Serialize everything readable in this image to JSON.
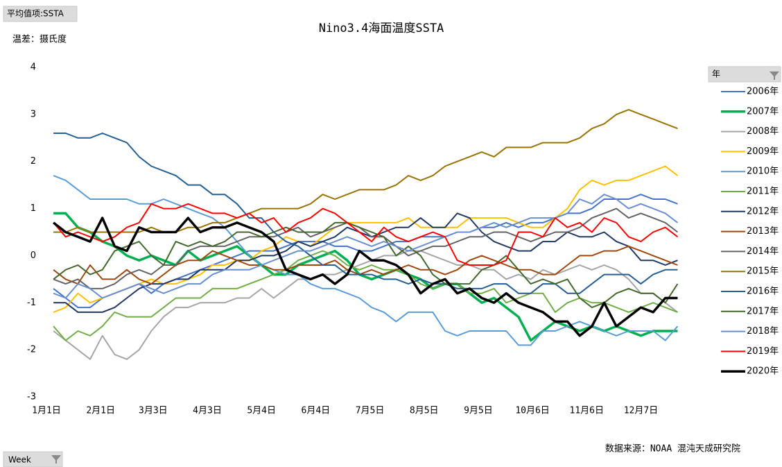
{
  "chart_data": {
    "type": "line",
    "title": "Nino3.4海面温度SSTA",
    "value_field": "平均值项:SSTA",
    "y_label": "温差：摄氏度",
    "legend_title": "年",
    "axis_field": "Week",
    "source": "数据来源：NOAA  混沌天成研究院",
    "legend": "right",
    "grid": false,
    "ylim": [
      -3,
      4
    ],
    "yticks": [
      -3,
      -2,
      -1,
      0,
      1,
      2,
      3,
      4
    ],
    "xlim": [
      0,
      366
    ],
    "xticks": [
      {
        "value": 0,
        "label": "1月1日"
      },
      {
        "value": 31,
        "label": "2月1日"
      },
      {
        "value": 61,
        "label": "3月3日"
      },
      {
        "value": 92,
        "label": "4月3日"
      },
      {
        "value": 123,
        "label": "5月4日"
      },
      {
        "value": 154,
        "label": "6月4日"
      },
      {
        "value": 185,
        "label": "7月5日"
      },
      {
        "value": 216,
        "label": "8月5日"
      },
      {
        "value": 247,
        "label": "9月5日"
      },
      {
        "value": 278,
        "label": "10月6日"
      },
      {
        "value": 309,
        "label": "11月6日"
      },
      {
        "value": 340,
        "label": "12月7日"
      }
    ],
    "x": [
      4,
      11,
      18,
      25,
      32,
      39,
      46,
      53,
      60,
      67,
      74,
      81,
      88,
      95,
      102,
      109,
      116,
      123,
      130,
      137,
      144,
      151,
      158,
      165,
      172,
      179,
      186,
      193,
      200,
      207,
      214,
      221,
      228,
      235,
      242,
      249,
      256,
      263,
      270,
      277,
      284,
      291,
      298,
      305,
      312,
      319,
      326,
      333,
      340,
      347,
      354,
      361
    ],
    "series": [
      {
        "name": "2006年",
        "color": "#4472c4",
        "width": 2,
        "values": [
          -0.7,
          -0.9,
          -1.1,
          -1.1,
          -0.9,
          -0.8,
          -0.7,
          -0.6,
          -0.8,
          -0.6,
          -0.5,
          -0.4,
          -0.3,
          -0.2,
          -0.1,
          0.0,
          0.1,
          0.1,
          0.1,
          0.2,
          0.3,
          0.3,
          0.3,
          0.2,
          0.2,
          0.1,
          0.1,
          0.2,
          0.3,
          0.3,
          0.4,
          0.4,
          0.4,
          0.5,
          0.5,
          0.6,
          0.6,
          0.7,
          0.6,
          0.7,
          0.7,
          0.8,
          0.9,
          0.9,
          1.0,
          1.2,
          1.2,
          1.2,
          1.3,
          1.2,
          1.2,
          1.1
        ]
      },
      {
        "name": "2007年",
        "color": "#00b050",
        "width": 3.5,
        "values": [
          0.9,
          0.9,
          0.6,
          0.5,
          0.3,
          0.2,
          0.0,
          -0.1,
          0.0,
          -0.1,
          -0.2,
          0.1,
          -0.1,
          0.0,
          0.1,
          0.2,
          0.0,
          -0.2,
          -0.4,
          -0.4,
          -0.2,
          -0.1,
          0.0,
          0.1,
          -0.1,
          -0.4,
          -0.5,
          -0.4,
          -0.3,
          -0.4,
          -0.5,
          -0.7,
          -0.6,
          -0.6,
          -0.8,
          -1.0,
          -0.9,
          -1.1,
          -1.3,
          -1.8,
          -1.6,
          -1.4,
          -1.5,
          -1.6,
          -1.5,
          -1.6,
          -1.5,
          -1.6,
          -1.7,
          -1.6,
          -1.6,
          -1.6
        ]
      },
      {
        "name": "2008年",
        "color": "#a5a5a5",
        "width": 2,
        "values": [
          -1.6,
          -1.8,
          -2.0,
          -2.2,
          -1.7,
          -2.1,
          -2.2,
          -2.0,
          -1.6,
          -1.3,
          -1.1,
          -1.1,
          -1.0,
          -1.0,
          -1.0,
          -0.9,
          -0.9,
          -0.7,
          -0.9,
          -0.7,
          -0.5,
          -0.5,
          -0.4,
          -0.4,
          -0.3,
          -0.2,
          -0.1,
          0.0,
          0.0,
          0.1,
          0.1,
          0.0,
          -0.1,
          -0.2,
          -0.2,
          -0.3,
          -0.3,
          -0.5,
          -0.4,
          -0.5,
          -0.3,
          -0.4,
          -0.3,
          -0.2,
          -0.3,
          -0.2,
          -0.3,
          -0.5,
          -0.8,
          -0.8,
          -1.0,
          -1.2
        ]
      },
      {
        "name": "2009年",
        "color": "#ffc000",
        "width": 2,
        "values": [
          -1.2,
          -1.1,
          -0.8,
          -1.0,
          -0.9,
          -0.8,
          -0.7,
          -0.6,
          -0.5,
          -0.6,
          -0.6,
          -0.5,
          -0.4,
          -0.2,
          -0.2,
          -0.1,
          -0.1,
          0.1,
          0.2,
          0.4,
          0.3,
          0.2,
          0.4,
          0.6,
          0.7,
          0.7,
          0.7,
          0.7,
          0.7,
          0.8,
          0.6,
          0.6,
          0.6,
          0.6,
          0.8,
          0.8,
          0.8,
          0.8,
          0.7,
          0.6,
          0.6,
          0.8,
          1.0,
          1.4,
          1.6,
          1.5,
          1.6,
          1.6,
          1.7,
          1.8,
          1.9,
          1.7
        ]
      },
      {
        "name": "2010年",
        "color": "#5b9bd5",
        "width": 2,
        "values": [
          1.7,
          1.6,
          1.4,
          1.2,
          1.2,
          1.2,
          1.2,
          1.1,
          1.1,
          1.2,
          1.1,
          1.0,
          0.9,
          0.8,
          0.6,
          0.3,
          0.0,
          -0.2,
          -0.3,
          -0.4,
          -0.4,
          -0.6,
          -0.7,
          -0.7,
          -0.8,
          -0.9,
          -1.1,
          -1.2,
          -1.4,
          -1.2,
          -1.2,
          -1.2,
          -1.6,
          -1.7,
          -1.6,
          -1.6,
          -1.6,
          -1.6,
          -1.9,
          -1.9,
          -1.6,
          -1.6,
          -1.5,
          -1.4,
          -1.5,
          -1.6,
          -1.7,
          -1.6,
          -1.6,
          -1.6,
          -1.8,
          -1.5
        ]
      },
      {
        "name": "2011年",
        "color": "#70ad47",
        "width": 2,
        "values": [
          -1.5,
          -1.8,
          -1.6,
          -1.7,
          -1.5,
          -1.2,
          -1.3,
          -1.3,
          -1.3,
          -1.1,
          -0.9,
          -0.9,
          -0.9,
          -0.7,
          -0.7,
          -0.7,
          -0.6,
          -0.5,
          -0.4,
          -0.3,
          -0.1,
          0.0,
          0.1,
          0.0,
          -0.2,
          -0.3,
          -0.2,
          -0.3,
          -0.3,
          -0.4,
          -0.6,
          -0.7,
          -0.6,
          -0.6,
          -0.8,
          -0.8,
          -0.7,
          -1.0,
          -0.9,
          -0.8,
          -0.8,
          -1.2,
          -1.0,
          -0.9,
          -1.0,
          -1.0,
          -1.1,
          -1.2,
          -1.1,
          -1.0,
          -1.1,
          -1.2
        ]
      },
      {
        "name": "2012年",
        "color": "#203864",
        "width": 2,
        "values": [
          -1.0,
          -1.0,
          -1.2,
          -1.2,
          -1.2,
          -1.1,
          -0.9,
          -0.7,
          -0.6,
          -0.6,
          -0.5,
          -0.5,
          -0.3,
          -0.3,
          -0.3,
          -0.1,
          -0.1,
          0.0,
          0.0,
          0.1,
          0.3,
          0.2,
          0.3,
          0.4,
          0.6,
          0.5,
          0.4,
          0.5,
          0.6,
          0.6,
          0.8,
          0.6,
          0.6,
          0.9,
          0.8,
          0.5,
          0.3,
          0.2,
          0.1,
          0.1,
          0.3,
          0.3,
          0.5,
          0.4,
          0.4,
          0.5,
          0.3,
          0.2,
          -0.1,
          -0.1,
          -0.2,
          -0.1
        ]
      },
      {
        "name": "2013年",
        "color": "#9e480e",
        "width": 2,
        "values": [
          -0.3,
          -0.5,
          -0.6,
          -0.2,
          -0.5,
          -0.5,
          -0.3,
          -0.5,
          -0.6,
          -0.4,
          -0.2,
          -0.1,
          -0.1,
          0.1,
          0.0,
          -0.1,
          -0.2,
          -0.2,
          -0.3,
          -0.3,
          -0.2,
          -0.2,
          -0.2,
          -0.1,
          -0.3,
          -0.4,
          -0.3,
          -0.4,
          -0.3,
          -0.2,
          -0.3,
          -0.3,
          -0.4,
          -0.3,
          -0.1,
          0.0,
          -0.1,
          -0.2,
          -0.3,
          -0.3,
          -0.4,
          -0.4,
          -0.2,
          0.0,
          0.0,
          0.1,
          0.1,
          0.2,
          0.1,
          0.0,
          -0.1,
          -0.2
        ]
      },
      {
        "name": "2014年",
        "color": "#636363",
        "width": 2,
        "values": [
          -0.5,
          -0.6,
          -0.5,
          -0.7,
          -0.7,
          -0.6,
          -0.4,
          -0.3,
          -0.4,
          -0.2,
          -0.2,
          0.1,
          0.2,
          0.2,
          0.2,
          0.3,
          0.4,
          0.4,
          0.4,
          0.5,
          0.6,
          0.4,
          0.5,
          0.6,
          0.7,
          0.6,
          0.4,
          0.4,
          0.2,
          0.0,
          0.1,
          0.2,
          0.2,
          0.3,
          0.4,
          0.4,
          0.5,
          0.5,
          0.4,
          0.3,
          0.4,
          0.5,
          0.5,
          0.6,
          0.8,
          0.9,
          1.0,
          0.8,
          0.9,
          0.8,
          0.7,
          0.5
        ]
      },
      {
        "name": "2015年",
        "color": "#997300",
        "width": 2,
        "values": [
          0.5,
          0.5,
          0.6,
          0.5,
          0.5,
          0.5,
          0.5,
          0.5,
          0.6,
          0.5,
          0.5,
          0.6,
          0.6,
          0.7,
          0.7,
          0.8,
          0.9,
          1.0,
          1.0,
          1.0,
          1.0,
          1.1,
          1.3,
          1.2,
          1.3,
          1.4,
          1.4,
          1.4,
          1.5,
          1.7,
          1.6,
          1.7,
          1.9,
          2.0,
          2.1,
          2.2,
          2.1,
          2.3,
          2.3,
          2.3,
          2.4,
          2.4,
          2.4,
          2.5,
          2.7,
          2.8,
          3.0,
          3.1,
          3.0,
          2.9,
          2.8,
          2.7
        ]
      },
      {
        "name": "2016年",
        "color": "#255e91",
        "width": 2,
        "values": [
          2.6,
          2.6,
          2.5,
          2.5,
          2.6,
          2.5,
          2.4,
          2.1,
          1.9,
          1.8,
          1.7,
          1.5,
          1.5,
          1.3,
          1.3,
          1.1,
          0.8,
          0.8,
          0.5,
          0.3,
          0.2,
          0.0,
          -0.2,
          -0.2,
          -0.4,
          -0.4,
          -0.4,
          -0.5,
          -0.5,
          -0.6,
          -0.5,
          -0.6,
          -0.6,
          -0.7,
          -0.7,
          -0.7,
          -0.6,
          -0.6,
          -0.8,
          -0.8,
          -0.6,
          -0.6,
          -0.8,
          -0.8,
          -0.6,
          -0.4,
          -0.4,
          -0.4,
          -0.6,
          -0.4,
          -0.3,
          -0.3
        ]
      },
      {
        "name": "2017年",
        "color": "#43682b",
        "width": 2,
        "values": [
          -0.5,
          -0.3,
          -0.2,
          -0.4,
          -0.3,
          0.1,
          0.2,
          0.3,
          0.0,
          -0.2,
          0.3,
          0.2,
          0.3,
          0.2,
          0.3,
          0.5,
          0.5,
          0.4,
          0.5,
          0.6,
          0.5,
          0.5,
          0.5,
          0.7,
          0.7,
          0.6,
          0.5,
          0.4,
          0.0,
          0.2,
          0.0,
          -0.4,
          -0.6,
          -0.6,
          -0.6,
          -0.3,
          -0.2,
          0.0,
          -0.3,
          -0.6,
          -0.5,
          -0.6,
          -0.5,
          -0.9,
          -1.1,
          -1.0,
          -0.8,
          -0.7,
          -0.8,
          -0.8,
          -1.0,
          -0.6
        ]
      },
      {
        "name": "2018年",
        "color": "#698ed0",
        "width": 2,
        "values": [
          -0.8,
          -0.9,
          -0.6,
          -0.7,
          -0.9,
          -0.8,
          -0.7,
          -0.6,
          -0.7,
          -0.8,
          -0.7,
          -0.6,
          -0.6,
          -0.4,
          -0.3,
          -0.3,
          -0.3,
          -0.2,
          -0.1,
          0.0,
          0.1,
          0.1,
          0.2,
          0.3,
          0.4,
          0.3,
          0.2,
          0.3,
          0.2,
          0.1,
          0.2,
          0.3,
          0.4,
          0.5,
          0.5,
          0.6,
          0.7,
          0.6,
          0.7,
          0.8,
          0.8,
          0.8,
          0.9,
          1.2,
          1.1,
          1.3,
          1.2,
          1.0,
          1.1,
          1.0,
          0.9,
          0.7
        ]
      },
      {
        "name": "2019年",
        "color": "#ff0000",
        "width": 2,
        "values": [
          0.7,
          0.4,
          0.5,
          0.4,
          0.3,
          0.4,
          0.6,
          0.7,
          1.1,
          1.0,
          1.0,
          1.1,
          1.0,
          0.9,
          0.9,
          0.8,
          0.9,
          0.7,
          0.8,
          0.5,
          0.7,
          0.8,
          1.0,
          0.9,
          0.7,
          0.5,
          0.3,
          0.6,
          0.4,
          0.3,
          0.4,
          0.5,
          0.4,
          -0.1,
          -0.2,
          -0.2,
          -0.2,
          -0.1,
          0.5,
          0.5,
          0.4,
          0.8,
          0.6,
          0.7,
          0.5,
          0.8,
          0.7,
          0.4,
          0.3,
          0.5,
          0.6,
          0.4
        ]
      },
      {
        "name": "2020年",
        "color": "#000000",
        "width": 3.5,
        "values": [
          0.7,
          0.5,
          0.4,
          0.3,
          0.8,
          0.2,
          0.1,
          0.6,
          0.5,
          0.5,
          0.5,
          0.8,
          0.5,
          0.6,
          0.6,
          0.7,
          0.6,
          0.5,
          0.3,
          -0.3,
          -0.4,
          -0.5,
          -0.4,
          -0.6,
          -0.4,
          0.1,
          -0.1,
          -0.1,
          -0.2,
          -0.4,
          -0.8,
          -0.6,
          -0.5,
          -0.8,
          -0.7,
          -0.9,
          -1.0,
          -0.8,
          -1.0,
          -1.1,
          -1.2,
          -1.4,
          -1.4,
          -1.7,
          -1.5,
          -1.0,
          -1.5,
          -1.3,
          -1.1,
          -1.2,
          -0.9,
          -0.9
        ]
      }
    ]
  }
}
